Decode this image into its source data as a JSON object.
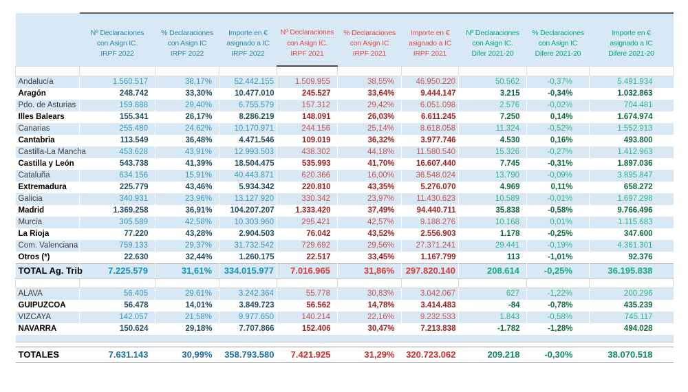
{
  "colors": {
    "header_bg": "#D8E9F5",
    "stripe_bg": "#D8E9F5",
    "teal_2022": "#3A97B5",
    "teal_2022_bold": "#1C4F66",
    "red_2021": "#C9534F",
    "red_2021_bold": "#9E1F1F",
    "green_dif": "#33B389",
    "green_dif_bold": "#0A6A43",
    "header_teal": "#2F86A3",
    "header_red": "#E04A45",
    "header_green": "#00A87A"
  },
  "table": {
    "columns": [
      {
        "group": "g22",
        "header_class": "h22",
        "label": "Nº Declaraciones\ncon Asign IC.\nIRPF 2022"
      },
      {
        "group": "g22",
        "header_class": "h22",
        "label": "% Declaraciones\ncon Asign IC\nIRPF 2022"
      },
      {
        "group": "g22",
        "header_class": "h22",
        "label": "Importe en €\nasignado a IC\nIRPF 2022"
      },
      {
        "group": "g21",
        "header_class": "h21",
        "label": "Nº Declaraciones\ncon Asign IC.\nIRPF 2021"
      },
      {
        "group": "g21",
        "header_class": "h21",
        "label": "% Declaraciones\ncon Asign IC\nIRPF 2021"
      },
      {
        "group": "g21",
        "header_class": "h21",
        "label": "Importe en €\nasignado a IC\nIRPF 2021"
      },
      {
        "group": "gd",
        "header_class": "hd",
        "label": "Nº Declaraciones\ncon Asign IC.\nDifer 2021-20"
      },
      {
        "group": "gd",
        "header_class": "hd",
        "label": "% Declaraciones\ncon Asign IC\nDifere 2021-20"
      },
      {
        "group": "gd",
        "header_class": "hd",
        "label": "Importe en €\nasignado a IC\nDifere 2021-20"
      }
    ],
    "regions": [
      {
        "label": "Andalucía",
        "variant": "striped",
        "values": [
          "1.560.517",
          "38,17%",
          "52.442.155",
          "1.509.955",
          "38,55%",
          "46.950.220",
          "50.562",
          "-0,37%",
          "5.491.934"
        ]
      },
      {
        "label": "Aragón",
        "variant": "bold",
        "values": [
          "248.742",
          "33,30%",
          "10.477.010",
          "245.527",
          "33,64%",
          "9.444.147",
          "3.215",
          "-0,34%",
          "1.032.863"
        ]
      },
      {
        "label": "Pdo. de Asturias",
        "variant": "striped",
        "values": [
          "159.888",
          "29,40%",
          "6.755.579",
          "157.312",
          "29,42%",
          "6.051.098",
          "2.576",
          "-0,02%",
          "704.481"
        ]
      },
      {
        "label": "Illes Balears",
        "variant": "bold",
        "values": [
          "155.341",
          "26,17%",
          "8.286.219",
          "148.091",
          "26,03%",
          "6.611.245",
          "7.250",
          "0,14%",
          "1.674.974"
        ]
      },
      {
        "label": "Canarias",
        "variant": "striped",
        "values": [
          "255.480",
          "24,62%",
          "10.170.971",
          "244.156",
          "25,14%",
          "8.618.058",
          "11.324",
          "-0,52%",
          "1.552.913"
        ]
      },
      {
        "label": "Cantabria",
        "variant": "bold",
        "values": [
          "113.549",
          "36,48%",
          "4.471.546",
          "109.019",
          "36,32%",
          "3.977.746",
          "4.530",
          "0,16%",
          "493.800"
        ]
      },
      {
        "label": "Castilla-La Mancha",
        "variant": "striped",
        "values": [
          "453.628",
          "43,91%",
          "12.993.503",
          "438.302",
          "44,18%",
          "11.580.540",
          "15.326",
          "-0,27%",
          "1.412.963"
        ]
      },
      {
        "label": "Castilla y León",
        "variant": "bold",
        "values": [
          "543.738",
          "41,39%",
          "18.504.475",
          "535.993",
          "41,70%",
          "16.607.440",
          "7.745",
          "-0,31%",
          "1.897.036"
        ]
      },
      {
        "label": "Cataluña",
        "variant": "striped",
        "values": [
          "634.156",
          "15,91%",
          "40.443.871",
          "620.366",
          "16,00%",
          "36.548.024",
          "13.790",
          "-0,09%",
          "3.895.847"
        ]
      },
      {
        "label": "Extremadura",
        "variant": "bold",
        "values": [
          "225.779",
          "43,46%",
          "5.934.342",
          "220.810",
          "43,35%",
          "5.276.070",
          "4.969",
          "0,11%",
          "658.272"
        ]
      },
      {
        "label": "Galicia",
        "variant": "striped",
        "values": [
          "340.931",
          "23,96%",
          "13.127.920",
          "330.342",
          "23,97%",
          "11.430.623",
          "10.589",
          "-0,01%",
          "1.697.298"
        ]
      },
      {
        "label": "Madrid",
        "variant": "bold",
        "values": [
          "1.369.258",
          "36,91%",
          "104.207.207",
          "1.333.420",
          "37,49%",
          "94.440.711",
          "35.838",
          "-0,58%",
          "9.766.496"
        ]
      },
      {
        "label": "Murcia",
        "variant": "striped",
        "values": [
          "305.589",
          "42,58%",
          "10.303.960",
          "295.421",
          "42,57%",
          "9.188.276",
          "10.168",
          "0,01%",
          "1.115.683"
        ]
      },
      {
        "label": "La Rioja",
        "variant": "bold",
        "values": [
          "77.220",
          "43,28%",
          "2.904.503",
          "76.042",
          "43,52%",
          "2.556.903",
          "1.178",
          "-0,25%",
          "347.600"
        ]
      },
      {
        "label": "Com. Valenciana",
        "variant": "striped",
        "values": [
          "759.133",
          "29,37%",
          "31.732.542",
          "729.692",
          "29,56%",
          "27.371.241",
          "29.441",
          "-0,19%",
          "4.361.301"
        ]
      },
      {
        "label": "Otros (*)",
        "variant": "bold",
        "values": [
          "22.630",
          "32,44%",
          "1.260.175",
          "22.517",
          "33,45%",
          "1.167.799",
          "113",
          "-1,01%",
          "92.376"
        ]
      }
    ],
    "total_ag": {
      "label": "TOTAL Ag. Trib",
      "variant": "total-ag",
      "values": [
        "7.225.579",
        "31,61%",
        "334.015.977",
        "7.016.965",
        "31,86%",
        "297.820.140",
        "208.614",
        "-0,25%",
        "36.195.838"
      ]
    },
    "foral": [
      {
        "label": "ALAVA",
        "variant": "striped",
        "values": [
          "56.405",
          "29,61%",
          "3.242.364",
          "55.778",
          "30,83%",
          "3.042.067",
          "627",
          "-1,22%",
          "200.296"
        ]
      },
      {
        "label": "GUIPUZCOA",
        "variant": "bold",
        "values": [
          "56.478",
          "14,01%",
          "3.849.723",
          "56.562",
          "14,78%",
          "3.414.483",
          "-84",
          "-0,78%",
          "435.239"
        ]
      },
      {
        "label": "VIZCAYA",
        "variant": "striped",
        "values": [
          "142.057",
          "21,58%",
          "9.977.650",
          "140.214",
          "22,16%",
          "9.232.533",
          "1.843",
          "-0,58%",
          "745.117"
        ]
      },
      {
        "label": "NAVARRA",
        "variant": "bold",
        "values": [
          "150.624",
          "29,18%",
          "7.707.866",
          "152.406",
          "30,47%",
          "7.213.838",
          "-1.782",
          "-1,28%",
          "494.028"
        ]
      }
    ],
    "totales": {
      "label": "TOTALES",
      "variant": "totales",
      "values": [
        "7.631.143",
        "30,99%",
        "358.793.580",
        "7.421.925",
        "31,29%",
        "320.723.062",
        "209.218",
        "-0,30%",
        "38.070.518"
      ]
    }
  }
}
